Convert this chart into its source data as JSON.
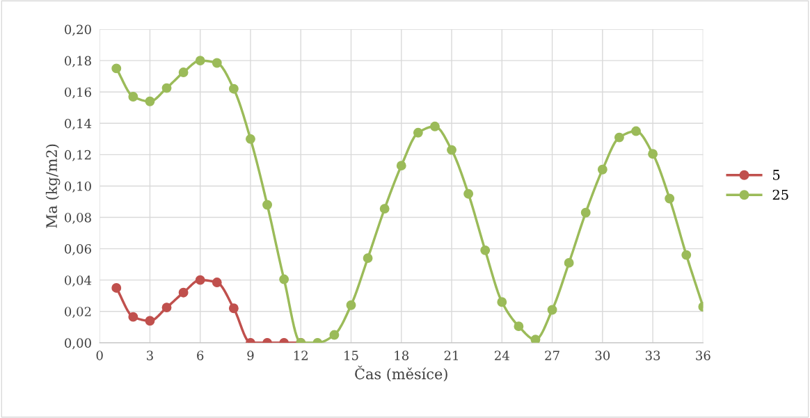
{
  "chart_data": {
    "type": "line",
    "xlabel": "Čas (měsíce)",
    "ylabel": "Ma (kg/m2)",
    "x": [
      1,
      2,
      3,
      4,
      5,
      6,
      7,
      8,
      9,
      10,
      11,
      12,
      13,
      14,
      15,
      16,
      17,
      18,
      19,
      20,
      21,
      22,
      23,
      24,
      25,
      26,
      27,
      28,
      29,
      30,
      31,
      32,
      33,
      34,
      35,
      36
    ],
    "series": [
      {
        "name": "5",
        "color": "#c0504d",
        "x": [
          1,
          2,
          3,
          4,
          5,
          6,
          7,
          8,
          9,
          10,
          11,
          12
        ],
        "values": [
          0.035,
          0.0165,
          0.014,
          0.0225,
          0.032,
          0.04,
          0.0385,
          0.022,
          0,
          0,
          0,
          0
        ]
      },
      {
        "name": "25",
        "color": "#9bbb59",
        "values": [
          0.175,
          0.157,
          0.154,
          0.1625,
          0.1725,
          0.18,
          0.1785,
          0.162,
          0.13,
          0.088,
          0.0405,
          0,
          0,
          0.005,
          0.024,
          0.054,
          0.0855,
          0.113,
          0.134,
          0.138,
          0.123,
          0.095,
          0.059,
          0.026,
          0.0105,
          0.002,
          0.021,
          0.051,
          0.083,
          0.1105,
          0.131,
          0.135,
          0.1205,
          0.092,
          0.056,
          0.023
        ]
      }
    ],
    "xlim": [
      0,
      36
    ],
    "xticks": [
      0,
      3,
      6,
      9,
      12,
      15,
      18,
      21,
      24,
      27,
      30,
      33,
      36
    ],
    "ylim": [
      0,
      0.2
    ],
    "yticks": [
      {
        "value": 0,
        "label": "0,00"
      },
      {
        "value": 0.02,
        "label": "0,02"
      },
      {
        "value": 0.04,
        "label": "0,04"
      },
      {
        "value": 0.06,
        "label": "0,06"
      },
      {
        "value": 0.08,
        "label": "0,08"
      },
      {
        "value": 0.1,
        "label": "0,10"
      },
      {
        "value": 0.12,
        "label": "0,12"
      },
      {
        "value": 0.14,
        "label": "0,14"
      },
      {
        "value": 0.16,
        "label": "0,16"
      },
      {
        "value": 0.18,
        "label": "0,18"
      },
      {
        "value": 0.2,
        "label": "0,20"
      }
    ],
    "grid": true,
    "legend": "right",
    "marker": "circle",
    "line_style": "solid"
  }
}
